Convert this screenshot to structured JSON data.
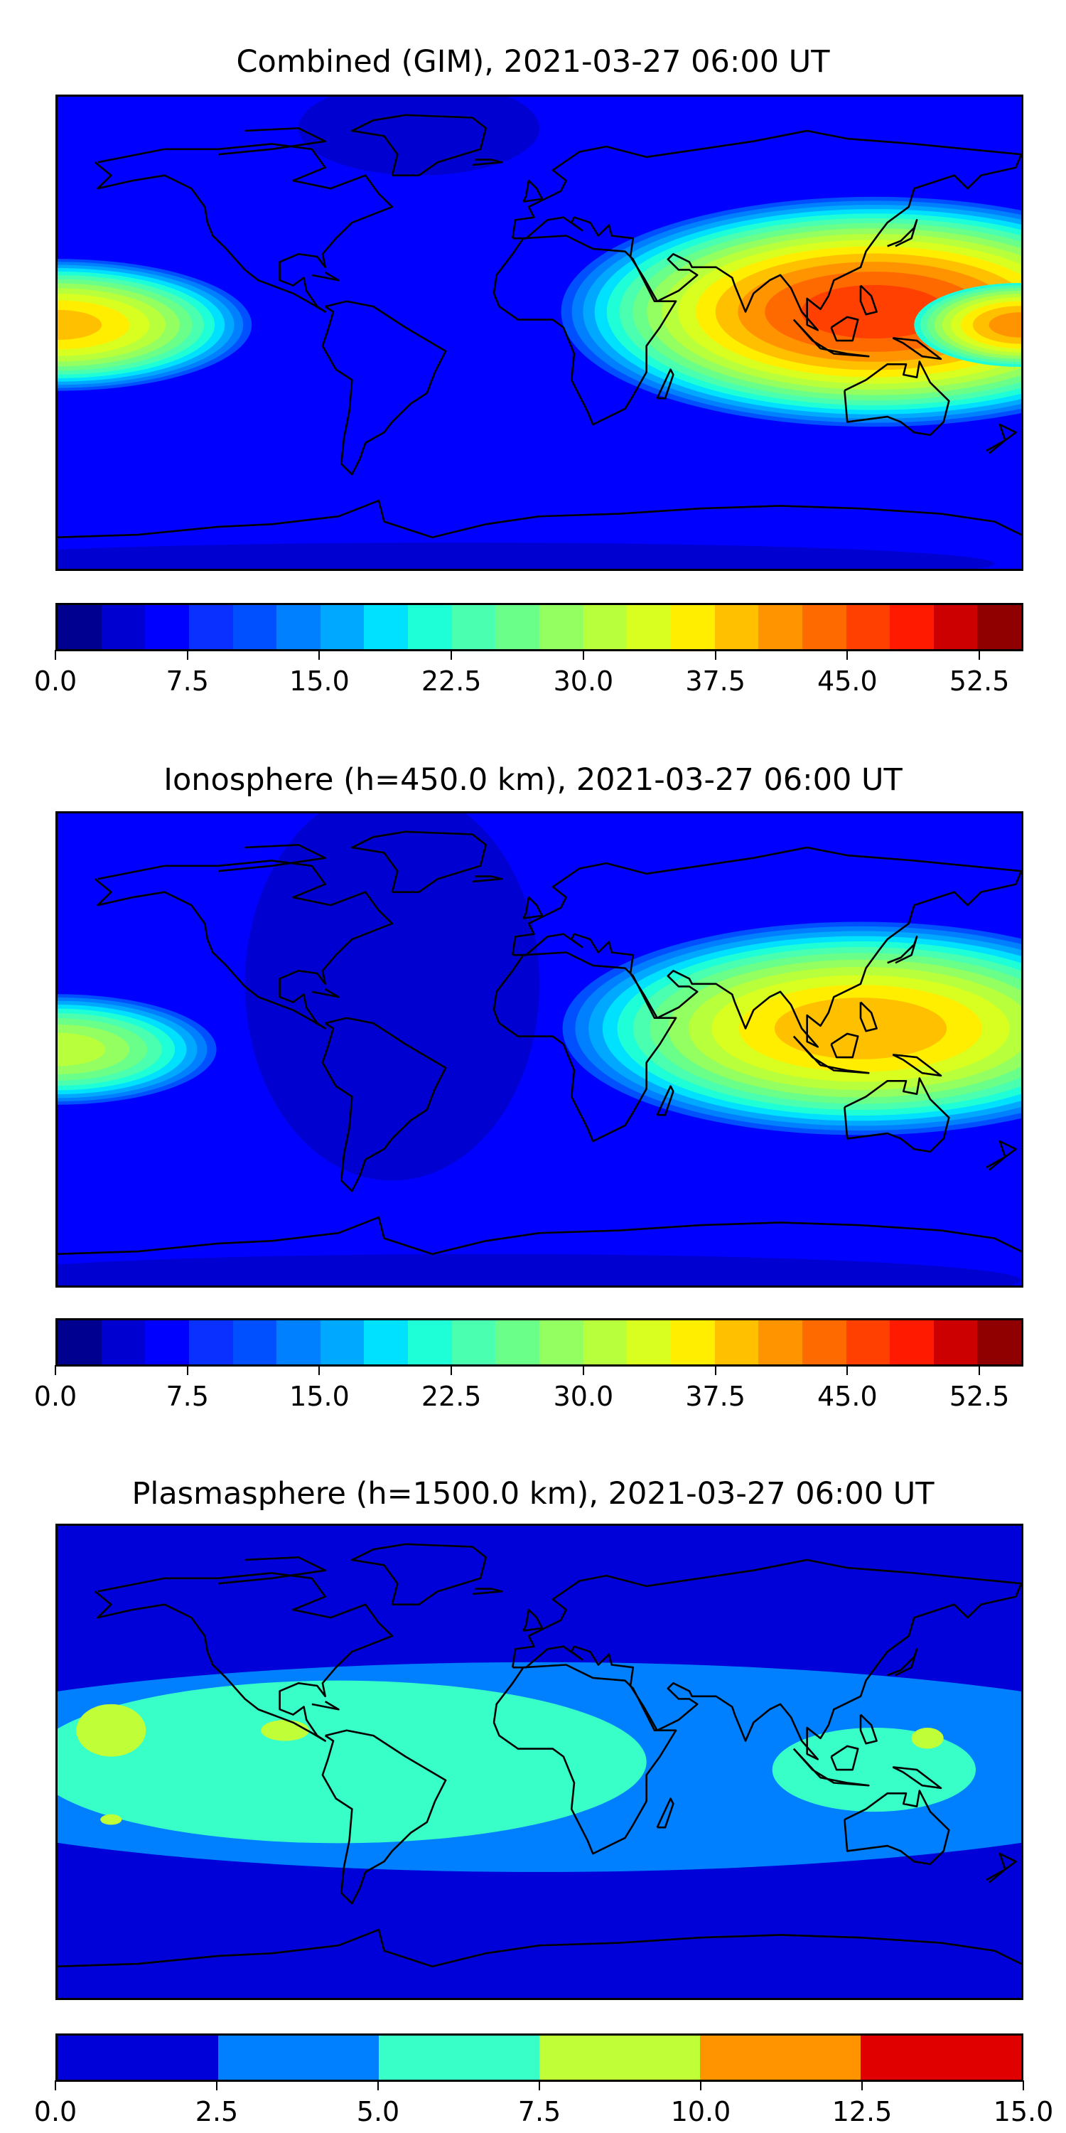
{
  "chart_data": [
    {
      "type": "heatmap",
      "title": "Combined (GIM), 2021-03-27 06:00 UT",
      "xlim": [
        -180,
        180
      ],
      "ylim": [
        -90,
        90
      ],
      "colorbar": {
        "range": [
          0,
          55
        ],
        "step": 2.5,
        "ticks": [
          "0.0",
          "7.5",
          "15.0",
          "22.5",
          "30.0",
          "37.5",
          "45.0",
          "52.5"
        ],
        "tick_values": [
          0,
          7.5,
          15,
          22.5,
          30,
          37.5,
          45,
          52.5
        ]
      },
      "background_value": 6,
      "features": [
        {
          "kind": "flat",
          "lon": -45,
          "lat": 78,
          "rlon": 45,
          "rlat": 18,
          "value": 3
        },
        {
          "kind": "flat",
          "lon": -30,
          "lat": -88,
          "rlon": 200,
          "rlat": 8,
          "value": 3
        },
        {
          "kind": "peak",
          "lon": 125,
          "lat": 8,
          "rlon": 120,
          "rlat": 45,
          "base": 8,
          "value": 47
        },
        {
          "kind": "peak",
          "lon": -180,
          "lat": 3,
          "rlon": 75,
          "rlat": 26,
          "base": 8,
          "value": 39
        },
        {
          "kind": "peak",
          "lon": 180,
          "lat": 3,
          "rlon": 40,
          "rlat": 16,
          "base": 20,
          "value": 42
        }
      ]
    },
    {
      "type": "heatmap",
      "title": "Ionosphere  (h=450.0 km), 2021-03-27 06:00 UT",
      "xlim": [
        -180,
        180
      ],
      "ylim": [
        -90,
        90
      ],
      "colorbar": {
        "range": [
          0,
          55
        ],
        "step": 2.5,
        "ticks": [
          "0.0",
          "7.5",
          "15.0",
          "22.5",
          "30.0",
          "37.5",
          "45.0",
          "52.5"
        ],
        "tick_values": [
          0,
          7.5,
          15,
          22.5,
          30,
          37.5,
          45,
          52.5
        ]
      },
      "background_value": 6,
      "features": [
        {
          "kind": "flat",
          "lon": -55,
          "lat": 25,
          "rlon": 55,
          "rlat": 75,
          "value": 3
        },
        {
          "kind": "flat",
          "lon": -20,
          "lat": -88,
          "rlon": 200,
          "rlat": 10,
          "value": 3
        },
        {
          "kind": "peak",
          "lon": 120,
          "lat": 8,
          "rlon": 115,
          "rlat": 42,
          "base": 8,
          "value": 40
        },
        {
          "kind": "peak",
          "lon": -180,
          "lat": 0,
          "rlon": 62,
          "rlat": 22,
          "base": 8,
          "value": 32
        }
      ]
    },
    {
      "type": "heatmap",
      "title": "Plasmasphere (h=1500.0 km), 2021-03-27 06:00 UT",
      "xlim": [
        -180,
        180
      ],
      "ylim": [
        -90,
        90
      ],
      "colorbar": {
        "range": [
          0,
          15
        ],
        "step": 2.5,
        "ticks": [
          "0.0",
          "2.5",
          "5.0",
          "7.5",
          "10.0",
          "12.5",
          "15.0"
        ],
        "tick_values": [
          0,
          2.5,
          5,
          7.5,
          10,
          12.5,
          15
        ]
      },
      "background_value": 1,
      "features": [
        {
          "kind": "flat",
          "lon": 0,
          "lat": -2,
          "rlon": 260,
          "rlat": 40,
          "value": 4
        },
        {
          "kind": "flat",
          "lon": -75,
          "lat": 0,
          "rlon": 115,
          "rlat": 31,
          "value": 6
        },
        {
          "kind": "flat",
          "lon": 125,
          "lat": -3,
          "rlon": 38,
          "rlat": 16,
          "value": 6
        },
        {
          "kind": "flat",
          "lon": -160,
          "lat": 12,
          "rlon": 13,
          "rlat": 10,
          "value": 8.5
        },
        {
          "kind": "flat",
          "lon": -95,
          "lat": 12,
          "rlon": 9,
          "rlat": 4,
          "value": 8.5
        },
        {
          "kind": "flat",
          "lon": 145,
          "lat": 9,
          "rlon": 6,
          "rlat": 4,
          "value": 8.5
        },
        {
          "kind": "flat",
          "lon": -160,
          "lat": -22,
          "rlon": 4,
          "rlat": 2,
          "value": 8.5
        }
      ]
    }
  ],
  "colors": {
    "jet22": [
      "#000090",
      "#0000d0",
      "#0000ff",
      "#0a30ff",
      "#0050ff",
      "#0080ff",
      "#00a8ff",
      "#00e0ff",
      "#1effd8",
      "#4affb0",
      "#6aff88",
      "#94ff60",
      "#b8ff3c",
      "#d8ff20",
      "#ffee00",
      "#ffc000",
      "#ff9400",
      "#ff6a00",
      "#ff4000",
      "#ff1a00",
      "#cc0000",
      "#900000"
    ],
    "jet6": [
      "#0000d8",
      "#0080ff",
      "#38ffc8",
      "#c0ff38",
      "#ff9400",
      "#e00000"
    ]
  }
}
